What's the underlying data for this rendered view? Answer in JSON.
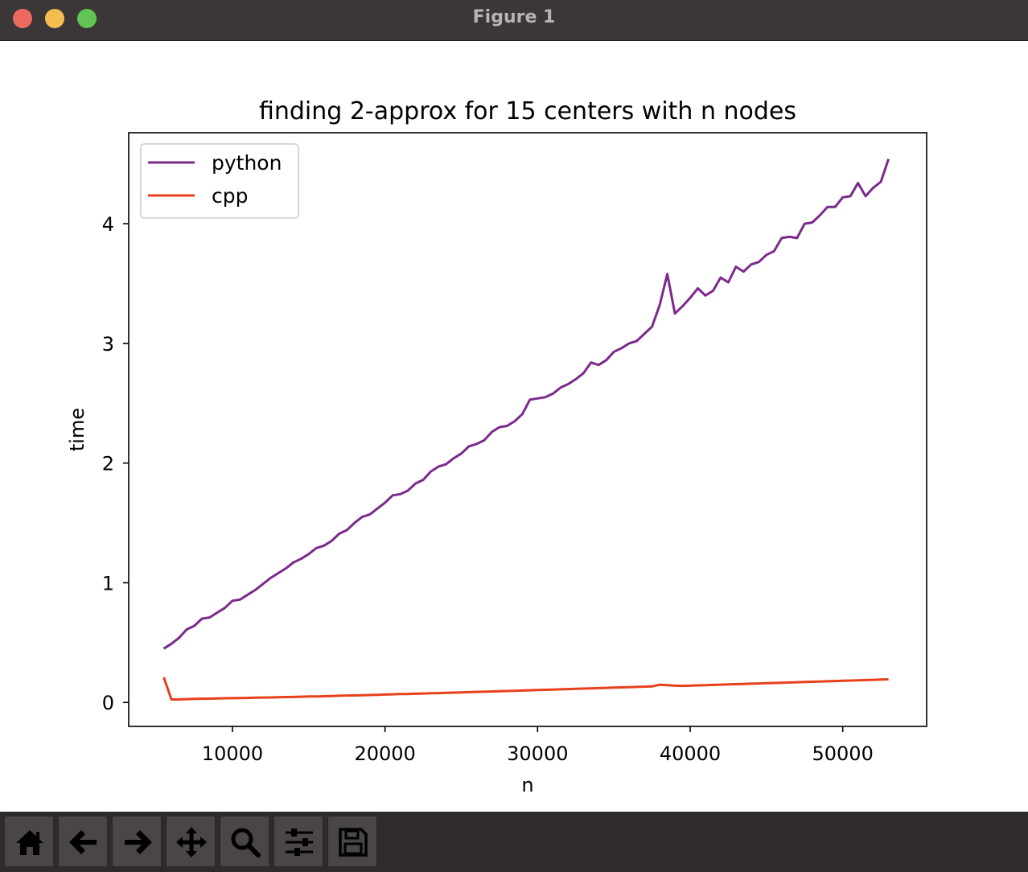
{
  "window": {
    "title": "Figure 1"
  },
  "toolbar": {
    "tools": [
      {
        "name": "home-icon",
        "label": "Home"
      },
      {
        "name": "back-icon",
        "label": "Back"
      },
      {
        "name": "forward-icon",
        "label": "Forward"
      },
      {
        "name": "pan-icon",
        "label": "Pan"
      },
      {
        "name": "zoom-icon",
        "label": "Zoom"
      },
      {
        "name": "configure-subplots-icon",
        "label": "Subplots"
      },
      {
        "name": "save-icon",
        "label": "Save"
      }
    ]
  },
  "chart_data": {
    "type": "line",
    "title": "finding 2-approx for 15 centers with n nodes",
    "xlabel": "n",
    "ylabel": "time",
    "xlim": [
      3200,
      55500
    ],
    "ylim": [
      -0.2,
      4.76
    ],
    "xticks": [
      10000,
      20000,
      30000,
      40000,
      50000
    ],
    "yticks": [
      0,
      1,
      2,
      3,
      4
    ],
    "grid": false,
    "legend_position": "top-left",
    "series": [
      {
        "name": "python",
        "color": "#7b2a8c",
        "x": [
          5500,
          6000,
          6500,
          7000,
          7500,
          8000,
          8500,
          9000,
          9500,
          10000,
          10500,
          11000,
          11500,
          12000,
          12500,
          13000,
          13500,
          14000,
          14500,
          15000,
          15500,
          16000,
          16500,
          17000,
          17500,
          18000,
          18500,
          19000,
          19500,
          20000,
          20500,
          21000,
          21500,
          22000,
          22500,
          23000,
          23500,
          24000,
          24500,
          25000,
          25500,
          26000,
          26500,
          27000,
          27500,
          28000,
          28500,
          29000,
          29500,
          30000,
          30500,
          31000,
          31500,
          32000,
          32500,
          33000,
          33500,
          34000,
          34500,
          35000,
          35500,
          36000,
          36500,
          37000,
          37500,
          38000,
          38500,
          39000,
          39500,
          40000,
          40500,
          41000,
          41500,
          42000,
          42500,
          43000,
          43500,
          44000,
          44500,
          45000,
          45500,
          46000,
          46500,
          47000,
          47500,
          48000,
          48500,
          49000,
          49500,
          50000,
          50500,
          51000,
          51500,
          52000,
          52500,
          53000
        ],
        "y": [
          0.45,
          0.49,
          0.54,
          0.61,
          0.64,
          0.7,
          0.71,
          0.75,
          0.79,
          0.85,
          0.86,
          0.9,
          0.94,
          0.99,
          1.04,
          1.08,
          1.12,
          1.17,
          1.2,
          1.24,
          1.29,
          1.31,
          1.35,
          1.41,
          1.44,
          1.5,
          1.55,
          1.57,
          1.62,
          1.67,
          1.73,
          1.74,
          1.77,
          1.83,
          1.86,
          1.93,
          1.97,
          1.99,
          2.04,
          2.08,
          2.14,
          2.16,
          2.19,
          2.26,
          2.3,
          2.31,
          2.35,
          2.41,
          2.53,
          2.54,
          2.55,
          2.58,
          2.63,
          2.66,
          2.7,
          2.75,
          2.84,
          2.82,
          2.86,
          2.93,
          2.96,
          3.0,
          3.02,
          3.08,
          3.14,
          3.32,
          3.58,
          3.25,
          3.31,
          3.38,
          3.46,
          3.4,
          3.44,
          3.55,
          3.51,
          3.64,
          3.6,
          3.66,
          3.68,
          3.74,
          3.77,
          3.88,
          3.89,
          3.88,
          4.0,
          4.01,
          4.07,
          4.14,
          4.14,
          4.22,
          4.23,
          4.34,
          4.23,
          4.3,
          4.35,
          4.54
        ]
      },
      {
        "name": "cpp",
        "color": "#e8401c",
        "x": [
          5500,
          6000,
          6500,
          7000,
          7500,
          8000,
          8500,
          9000,
          9500,
          10000,
          10500,
          11000,
          11500,
          12000,
          12500,
          13000,
          13500,
          14000,
          14500,
          15000,
          15500,
          16000,
          16500,
          17000,
          17500,
          18000,
          18500,
          19000,
          19500,
          20000,
          20500,
          21000,
          21500,
          22000,
          22500,
          23000,
          23500,
          24000,
          24500,
          25000,
          25500,
          26000,
          26500,
          27000,
          27500,
          28000,
          28500,
          29000,
          29500,
          30000,
          30500,
          31000,
          31500,
          32000,
          32500,
          33000,
          33500,
          34000,
          34500,
          35000,
          35500,
          36000,
          36500,
          37000,
          37500,
          38000,
          38500,
          39000,
          39500,
          40000,
          40500,
          41000,
          41500,
          42000,
          42500,
          43000,
          43500,
          44000,
          44500,
          45000,
          45500,
          46000,
          46500,
          47000,
          47500,
          48000,
          48500,
          49000,
          49500,
          50000,
          50500,
          51000,
          51500,
          52000,
          52500,
          53000
        ],
        "y": [
          0.21,
          0.025,
          0.025,
          0.028,
          0.03,
          0.031,
          0.032,
          0.034,
          0.035,
          0.036,
          0.037,
          0.038,
          0.04,
          0.041,
          0.042,
          0.044,
          0.045,
          0.046,
          0.048,
          0.05,
          0.051,
          0.052,
          0.054,
          0.056,
          0.058,
          0.059,
          0.061,
          0.062,
          0.064,
          0.066,
          0.068,
          0.07,
          0.071,
          0.073,
          0.075,
          0.077,
          0.078,
          0.08,
          0.082,
          0.084,
          0.086,
          0.088,
          0.09,
          0.092,
          0.094,
          0.096,
          0.098,
          0.1,
          0.102,
          0.104,
          0.106,
          0.108,
          0.11,
          0.112,
          0.114,
          0.116,
          0.118,
          0.12,
          0.122,
          0.124,
          0.126,
          0.128,
          0.13,
          0.132,
          0.134,
          0.148,
          0.145,
          0.14,
          0.139,
          0.14,
          0.143,
          0.145,
          0.147,
          0.149,
          0.151,
          0.153,
          0.155,
          0.157,
          0.159,
          0.161,
          0.163,
          0.165,
          0.167,
          0.169,
          0.171,
          0.173,
          0.175,
          0.177,
          0.179,
          0.181,
          0.183,
          0.185,
          0.187,
          0.189,
          0.191,
          0.193
        ]
      }
    ]
  }
}
